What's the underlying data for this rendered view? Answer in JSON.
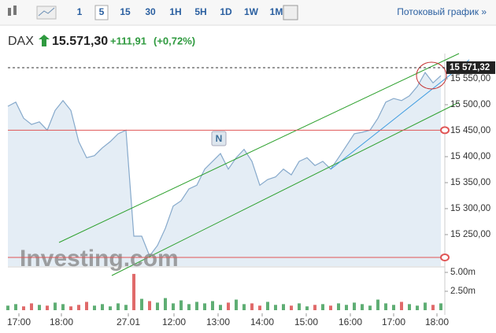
{
  "header": {
    "intervals": [
      "1",
      "5",
      "15",
      "30",
      "1H",
      "5H",
      "1D",
      "1W",
      "1M"
    ],
    "active_interval_index": 1,
    "stream_link": "Потоковый график »",
    "symbol": "DAX",
    "price": "15.571,30",
    "change": "+111,91",
    "change_pct": "(+0,72%)"
  },
  "chart_data": {
    "type": "area",
    "watermark": "Investing.com",
    "annotation": "N",
    "values": [
      15497,
      15505,
      15474,
      15462,
      15467,
      15451,
      15489,
      15508,
      15489,
      15429,
      15398,
      15402,
      15417,
      15429,
      15444,
      15451,
      15247,
      15247,
      15209,
      15229,
      15262,
      15305,
      15315,
      15338,
      15345,
      15376,
      15391,
      15406,
      15376,
      15398,
      15414,
      15391,
      15345,
      15356,
      15361,
      15376,
      15365,
      15391,
      15398,
      15383,
      15391,
      15376,
      15398,
      15421,
      15444,
      15447,
      15451,
      15474,
      15505,
      15512,
      15508,
      15517,
      15535,
      15562,
      15542,
      15556
    ],
    "color": "#86a9cb",
    "area_color": "#e4edf5",
    "xlim": [
      0,
      55
    ],
    "xticks": [
      {
        "value": 1.4,
        "label": "17:00"
      },
      {
        "value": 6.8,
        "label": "18:00"
      },
      {
        "value": 15.3,
        "label": "27.01"
      },
      {
        "value": 21.1,
        "label": "12:00"
      },
      {
        "value": 26.7,
        "label": "13:00"
      },
      {
        "value": 32.3,
        "label": "14:00"
      },
      {
        "value": 37.9,
        "label": "15:00"
      },
      {
        "value": 43.5,
        "label": "16:00"
      },
      {
        "value": 49,
        "label": "17:00"
      },
      {
        "value": 54.5,
        "label": "18:00"
      }
    ],
    "ylim": [
      15189.4,
      15598.5
    ],
    "yticks": [
      {
        "value": 15250,
        "label": "15 250,00"
      },
      {
        "value": 15300,
        "label": "15 300,00"
      },
      {
        "value": 15350,
        "label": "15 350,00"
      },
      {
        "value": 15400,
        "label": "15 400,00"
      },
      {
        "value": 15450,
        "label": "15 450,00"
      },
      {
        "value": 15500,
        "label": "15 500,00"
      },
      {
        "value": 15550,
        "label": "15 550,00"
      }
    ],
    "last_price": {
      "value": 15571.32,
      "label": "15 571,32"
    },
    "hlines": [
      15451,
      15206
    ],
    "hline_color": "#e05555",
    "volume": {
      "values": [
        600000,
        800000,
        500000,
        900000,
        700000,
        600000,
        1000000,
        800000,
        500000,
        700000,
        1100000,
        600000,
        800000,
        500000,
        900000,
        700000,
        4800000,
        1500000,
        1200000,
        1000000,
        1600000,
        900000,
        1300000,
        800000,
        1100000,
        900000,
        1200000,
        700000,
        1000000,
        1400000,
        800000,
        900000,
        600000,
        1100000,
        700000,
        800000,
        600000,
        900000,
        500000,
        700000,
        800000,
        600000,
        900000,
        700000,
        1000000,
        800000,
        600000,
        1400000,
        900000,
        700000,
        1100000,
        800000,
        600000,
        1000000,
        700000,
        900000
      ],
      "ylim": [
        0,
        5625000
      ],
      "yticks": [
        {
          "value": 5000000,
          "label": "5.00m"
        },
        {
          "value": 2500000,
          "label": "2.50m"
        }
      ],
      "up_color": "#5fae74",
      "down_color": "#e06a6a"
    }
  }
}
